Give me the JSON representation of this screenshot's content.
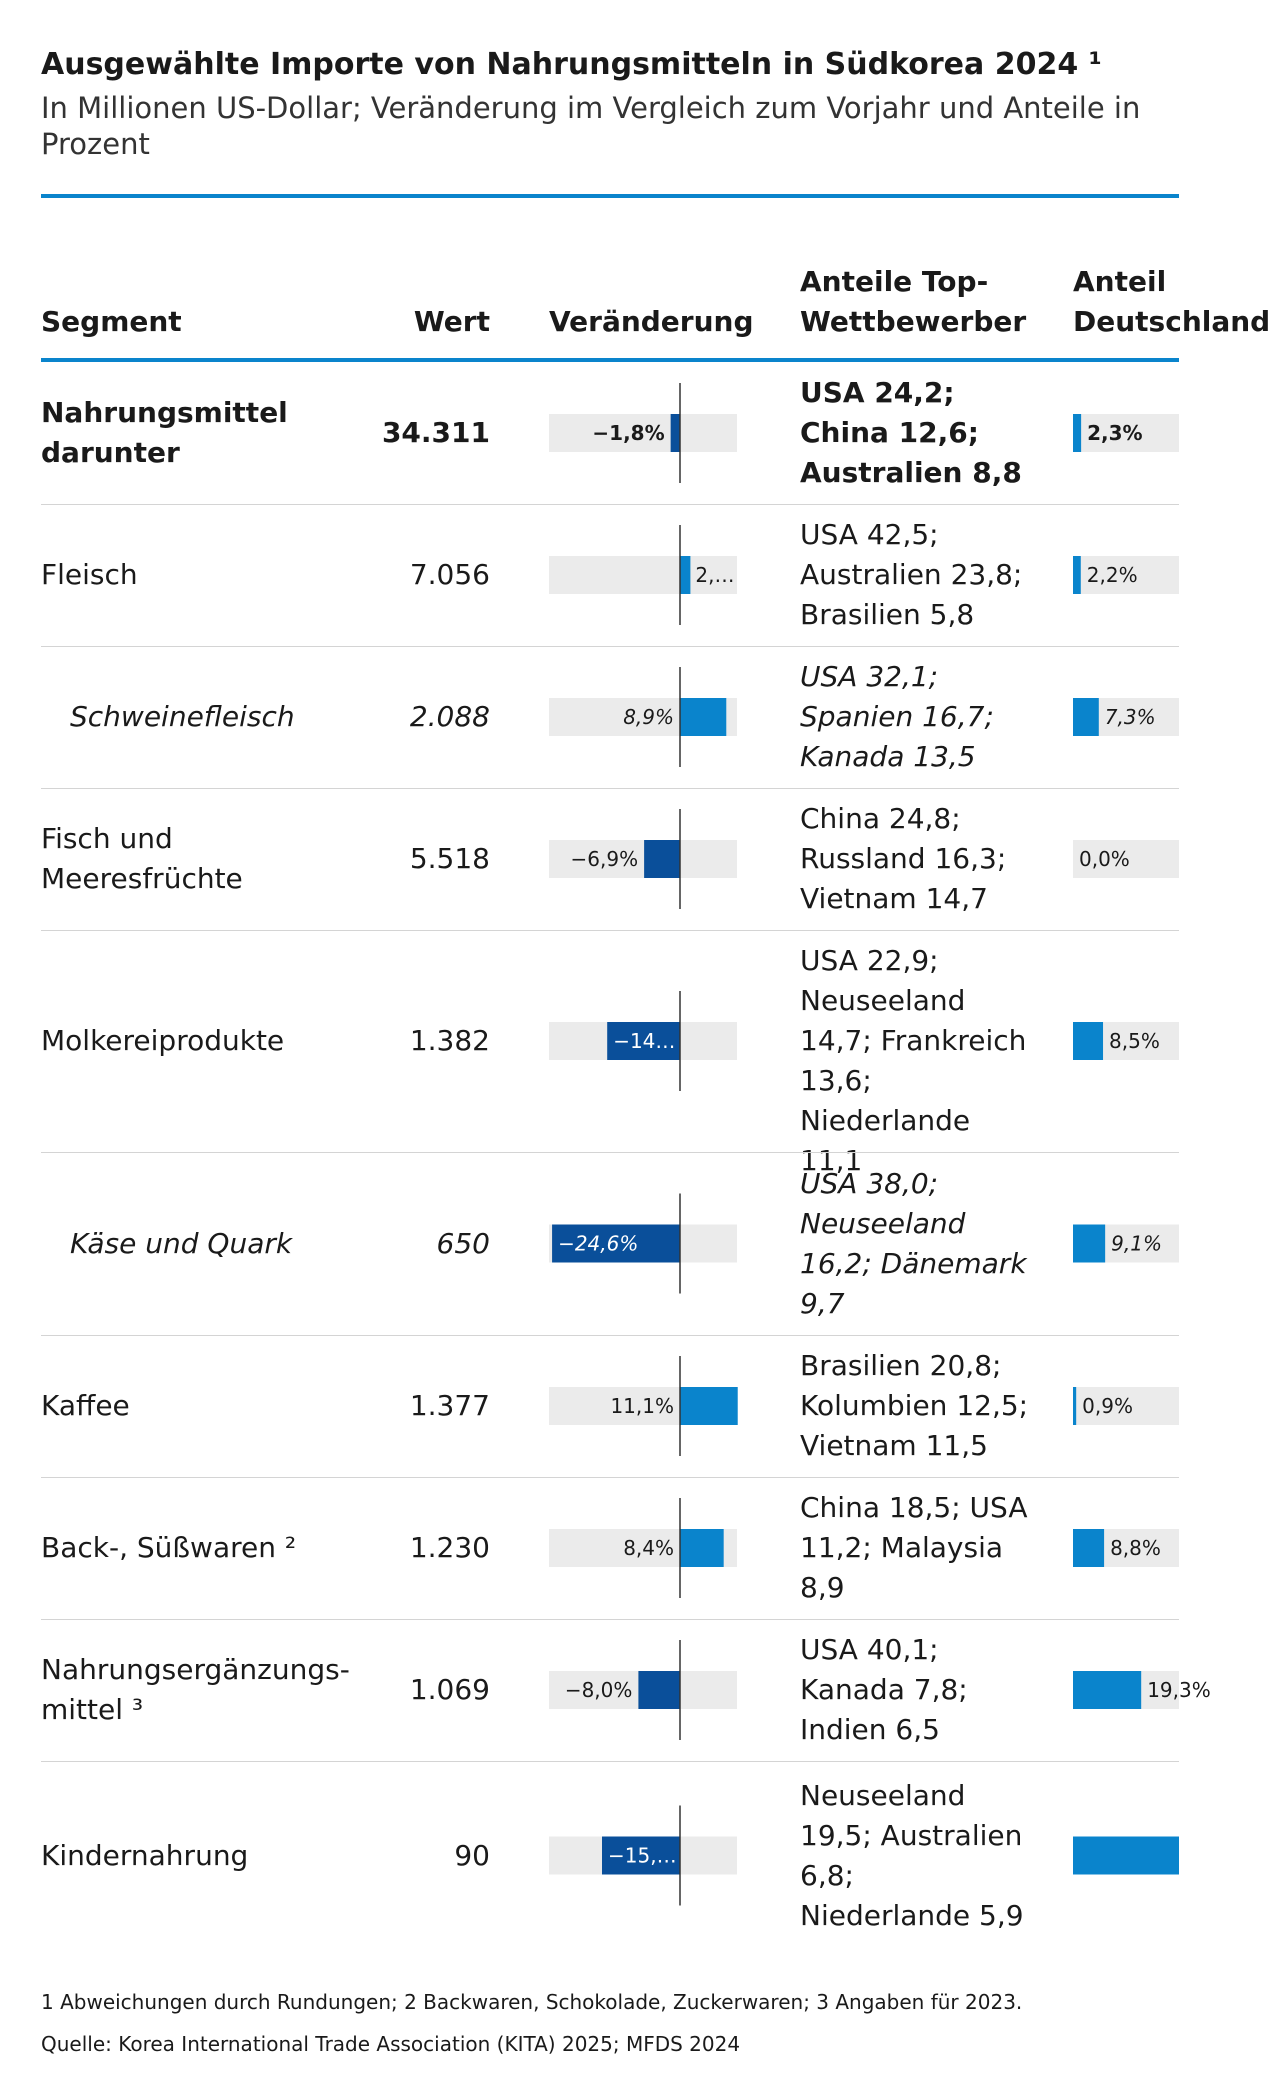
{
  "title": "Ausgewählte Importe von Nahrungsmitteln in Südkorea 2024 ¹",
  "subtitle": "In Millionen US-Dollar; Veränderung im Vergleich zum Vorjahr und Anteile in Prozent",
  "headers": {
    "segment": "Segment",
    "wert": "Wert",
    "veraenderung": "Veränderung",
    "competitors_line1": "Anteile Top-",
    "competitors_line2": "Wettbewerber",
    "germany_line1": "Anteil",
    "germany_line2": "Deutschland"
  },
  "colors": {
    "accent": "#0a84cc",
    "positive_bar": "#0a84cc",
    "negative_bar": "#0a4f9a",
    "track": "#ebebeb"
  },
  "chart_data": {
    "type": "table",
    "change_range": [
      -25,
      25
    ],
    "share_range": [
      0,
      30
    ],
    "rows": [
      {
        "segment": "Nahrungsmittel darunter",
        "segment_lines": [
          "Nahrungsmittel",
          "darunter"
        ],
        "value": "34.311",
        "change": -1.8,
        "change_label": "−1,8%",
        "competitors": [
          "USA 24,2;",
          "China 12,6;",
          "Australien 8,8"
        ],
        "germany": 2.3,
        "germany_label": "2,3%",
        "style": "bold"
      },
      {
        "segment": "Fleisch",
        "segment_lines": [
          "Fleisch"
        ],
        "value": "7.056",
        "change": 2.0,
        "change_label": "2,…",
        "competitors": [
          "USA 42,5;",
          "Australien 23,8;",
          "Brasilien 5,8"
        ],
        "germany": 2.2,
        "germany_label": "2,2%",
        "style": "normal"
      },
      {
        "segment": "Schweinefleisch",
        "segment_lines": [
          "Schweinefleisch"
        ],
        "value": "2.088",
        "change": 8.9,
        "change_label": "8,9%",
        "competitors": [
          "USA 32,1;",
          "Spanien 16,7;",
          "Kanada 13,5"
        ],
        "germany": 7.3,
        "germany_label": "7,3%",
        "style": "italic"
      },
      {
        "segment": "Fisch und Meeresfrüchte",
        "segment_lines": [
          "Fisch und",
          "Meeresfrüchte"
        ],
        "value": "5.518",
        "change": -6.9,
        "change_label": "−6,9%",
        "competitors": [
          "China 24,8;",
          "Russland 16,3;",
          "Vietnam 14,7"
        ],
        "germany": 0.0,
        "germany_label": "0,0%",
        "style": "normal"
      },
      {
        "segment": "Molkereiprodukte",
        "segment_lines": [
          "Molkereiprodukte"
        ],
        "value": "1.382",
        "change": -14.0,
        "change_label": "−14…",
        "competitors": [
          "USA 22,9;",
          "Neuseeland",
          "14,7; Frankreich",
          "13,6;",
          "Niederlande 11,1"
        ],
        "germany": 8.5,
        "germany_label": "8,5%",
        "style": "normal"
      },
      {
        "segment": "Käse und Quark",
        "segment_lines": [
          "Käse und Quark"
        ],
        "value": "650",
        "change": -24.6,
        "change_label": "−24,6%",
        "competitors": [
          "USA 38,0;",
          "Neuseeland",
          "16,2; Dänemark",
          "9,7"
        ],
        "germany": 9.1,
        "germany_label": "9,1%",
        "style": "italic"
      },
      {
        "segment": "Kaffee",
        "segment_lines": [
          "Kaffee"
        ],
        "value": "1.377",
        "change": 11.1,
        "change_label": "11,1%",
        "competitors": [
          "Brasilien 20,8;",
          "Kolumbien 12,5;",
          "Vietnam 11,5"
        ],
        "germany": 0.9,
        "germany_label": "0,9%",
        "style": "normal"
      },
      {
        "segment": "Back-, Süßwaren ²",
        "segment_lines": [
          "Back-, Süßwaren ²"
        ],
        "value": "1.230",
        "change": 8.4,
        "change_label": "8,4%",
        "competitors": [
          "China 18,5; USA",
          "11,2; Malaysia",
          "8,9"
        ],
        "germany": 8.8,
        "germany_label": "8,8%",
        "style": "normal"
      },
      {
        "segment": "Nahrungsergänzungsmittel ³",
        "segment_lines": [
          "Nahrungsergänzungs-",
          "mittel ³"
        ],
        "value": "1.069",
        "change": -8.0,
        "change_label": "−8,0%",
        "competitors": [
          "USA 40,1;",
          "Kanada 7,8;",
          "Indien 6,5"
        ],
        "germany": 19.3,
        "germany_label": "19,3%",
        "style": "normal"
      },
      {
        "segment": "Kindernahrung",
        "segment_lines": [
          "Kindernahrung"
        ],
        "value": "90",
        "change": -15.0,
        "change_label": "−15,…",
        "competitors": [
          "Neuseeland",
          "19,5; Australien",
          "6,8;",
          "Niederlande 5,9"
        ],
        "germany": 30.0,
        "germany_label": "",
        "style": "normal"
      }
    ]
  },
  "footnotes": {
    "note": "1 Abweichungen durch Rundungen; 2 Backwaren, Schokolade, Zuckerwaren; 3 Angaben für 2023.",
    "source": "Quelle: Korea International Trade Association (KITA) 2025; MFDS 2024"
  }
}
